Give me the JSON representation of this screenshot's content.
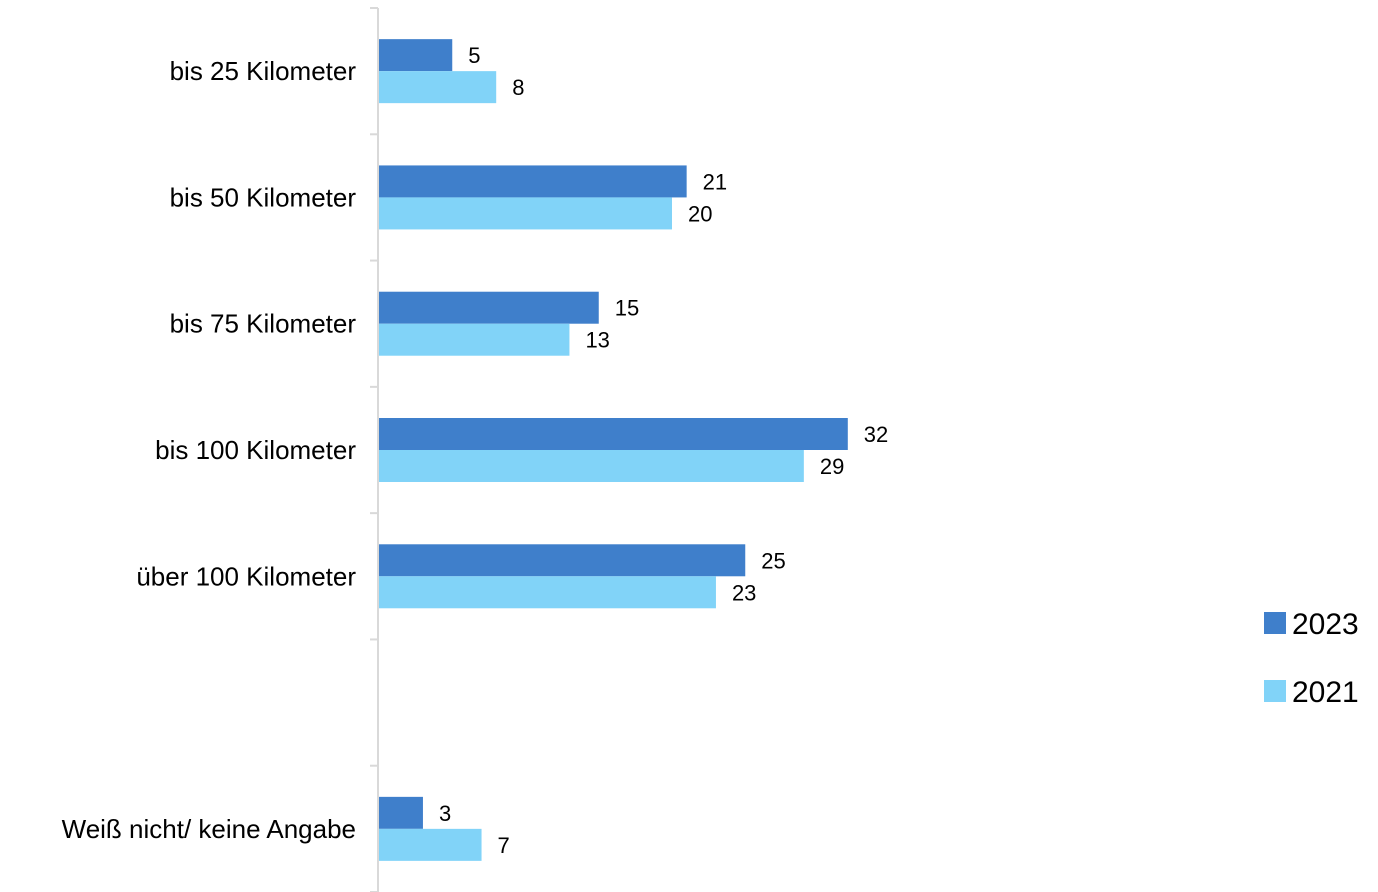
{
  "chart_data": {
    "type": "bar",
    "orientation": "horizontal",
    "categories": [
      "bis 25 Kilometer",
      "bis 50 Kilometer",
      "bis 75 Kilometer",
      "bis 100 Kilometer",
      "über 100 Kilometer",
      "",
      "Weiß nicht/ keine Angabe"
    ],
    "series": [
      {
        "name": "2023",
        "color": "#3F7FCB",
        "values": [
          5,
          21,
          15,
          32,
          25,
          null,
          3
        ]
      },
      {
        "name": "2021",
        "color": "#81D3F8",
        "values": [
          8,
          20,
          13,
          29,
          23,
          null,
          7
        ]
      }
    ],
    "title": "",
    "xlabel": "",
    "ylabel": "",
    "xlim": [
      0,
      35
    ],
    "grid": false,
    "legend_position": "right"
  }
}
